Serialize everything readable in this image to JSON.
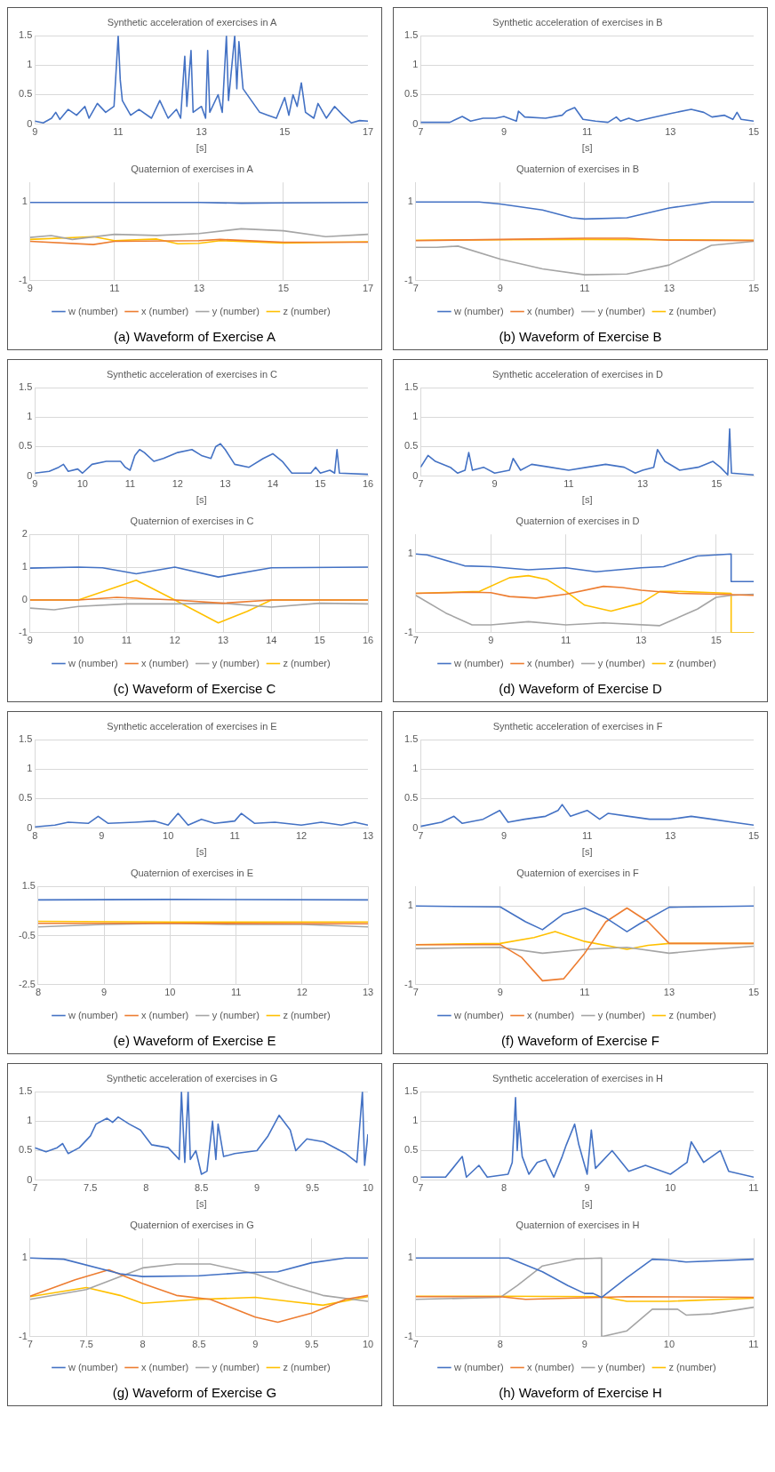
{
  "chart_data": [
    {
      "type": "line",
      "title": "Synthetic acceleration of exercises in A",
      "xlabel": "[s]",
      "color": "#4472c4",
      "marker": "none",
      "grid": "y",
      "xlim": [
        9,
        17
      ],
      "xticks": [
        9,
        11,
        13,
        15,
        17
      ],
      "ylim": [
        0,
        1.5
      ],
      "yticks": [
        0,
        0.5,
        1,
        1.5
      ],
      "x": [
        9,
        9.2,
        9.4,
        9.5,
        9.6,
        9.8,
        10,
        10.2,
        10.3,
        10.5,
        10.7,
        10.9,
        11,
        11.05,
        11.1,
        11.3,
        11.5,
        11.8,
        12,
        12.2,
        12.4,
        12.5,
        12.6,
        12.65,
        12.7,
        12.75,
        12.8,
        13,
        13.1,
        13.15,
        13.2,
        13.4,
        13.5,
        13.6,
        13.65,
        13.8,
        13.85,
        13.9,
        14,
        14.2,
        14.4,
        14.6,
        14.8,
        15,
        15.1,
        15.2,
        15.3,
        15.4,
        15.5,
        15.7,
        15.8,
        16,
        16.2,
        16.4,
        16.6,
        16.8,
        17
      ],
      "values": [
        0.05,
        0.02,
        0.1,
        0.2,
        0.08,
        0.25,
        0.15,
        0.3,
        0.1,
        0.35,
        0.2,
        0.3,
        1.5,
        0.75,
        0.4,
        0.15,
        0.25,
        0.1,
        0.4,
        0.1,
        0.25,
        0.1,
        1.15,
        0.3,
        0.8,
        1.25,
        0.2,
        0.3,
        0.1,
        1.25,
        0.2,
        0.5,
        0.2,
        1.5,
        0.4,
        1.5,
        0.6,
        1.4,
        0.6,
        0.4,
        0.2,
        0.15,
        0.1,
        0.45,
        0.15,
        0.5,
        0.3,
        0.7,
        0.2,
        0.1,
        0.35,
        0.1,
        0.3,
        0.15,
        0.02,
        0.06,
        0.05
      ]
    },
    {
      "type": "line",
      "title": "Quaternion of exercises in A",
      "marker": "none",
      "grid": true,
      "legend": "bottom",
      "xlim": [
        9,
        17
      ],
      "xticks": [
        9,
        11,
        13,
        15,
        17
      ],
      "ylim": [
        -1,
        1.5
      ],
      "yticks": [
        -1,
        1
      ],
      "annotations": [
        "(a) Waveform of Exercise A"
      ],
      "series": [
        {
          "name": "w (number)",
          "color": "#4472c4",
          "x": [
            9,
            11,
            13,
            14,
            15,
            17
          ],
          "values": [
            0.99,
            0.99,
            0.99,
            0.97,
            0.98,
            0.99
          ]
        },
        {
          "name": "x (number)",
          "color": "#ed7d31",
          "x": [
            9,
            10.5,
            11,
            13,
            13.5,
            15,
            17
          ],
          "values": [
            0,
            -0.08,
            0,
            0.02,
            0.05,
            -0.02,
            -0.02
          ]
        },
        {
          "name": "y (number)",
          "color": "#a5a5a5",
          "x": [
            9,
            9.5,
            10,
            11,
            12,
            13,
            14,
            15,
            16,
            17
          ],
          "values": [
            0.1,
            0.15,
            0.05,
            0.18,
            0.15,
            0.2,
            0.32,
            0.27,
            0.12,
            0.18
          ]
        },
        {
          "name": "z (number)",
          "color": "#ffc000",
          "x": [
            9,
            10.5,
            11,
            12,
            12.5,
            13,
            13.5,
            15,
            17
          ],
          "values": [
            0.05,
            0.12,
            0.02,
            0.06,
            -0.06,
            -0.05,
            0.02,
            -0.04,
            -0.01
          ]
        }
      ]
    },
    {
      "type": "line",
      "title": "Synthetic acceleration of exercises in B",
      "xlabel": "[s]",
      "color": "#4472c4",
      "marker": "none",
      "grid": "y",
      "xlim": [
        7,
        15
      ],
      "xticks": [
        7,
        9,
        11,
        13,
        15
      ],
      "ylim": [
        0,
        1.5
      ],
      "yticks": [
        0,
        0.5,
        1,
        1.5
      ],
      "x": [
        7,
        7.7,
        8,
        8.2,
        8.5,
        8.8,
        9,
        9.3,
        9.35,
        9.5,
        10,
        10.4,
        10.5,
        10.7,
        10.9,
        11.2,
        11.5,
        11.7,
        11.8,
        12,
        12.2,
        12.5,
        13,
        13.5,
        13.8,
        14,
        14.3,
        14.5,
        14.6,
        14.7,
        15
      ],
      "values": [
        0.03,
        0.03,
        0.13,
        0.05,
        0.1,
        0.1,
        0.13,
        0.05,
        0.22,
        0.12,
        0.1,
        0.15,
        0.22,
        0.28,
        0.08,
        0.05,
        0.03,
        0.12,
        0.05,
        0.1,
        0.05,
        0.1,
        0.18,
        0.25,
        0.2,
        0.12,
        0.15,
        0.08,
        0.2,
        0.08,
        0.05
      ]
    },
    {
      "type": "line",
      "title": "Quaternion of exercises in B",
      "marker": "none",
      "grid": true,
      "legend": "bottom",
      "xlim": [
        7,
        15
      ],
      "xticks": [
        7,
        9,
        11,
        13,
        15
      ],
      "ylim": [
        -1,
        1.5
      ],
      "yticks": [
        -1,
        1
      ],
      "annotations": [
        "(b) Waveform of Exercise B"
      ],
      "series": [
        {
          "name": "w (number)",
          "color": "#4472c4",
          "x": [
            7,
            8.5,
            9,
            10,
            10.7,
            11,
            12,
            13,
            14,
            15
          ],
          "values": [
            1,
            1,
            0.95,
            0.8,
            0.6,
            0.57,
            0.6,
            0.85,
            1,
            1
          ]
        },
        {
          "name": "x (number)",
          "color": "#ed7d31",
          "x": [
            7,
            9,
            11,
            12,
            13,
            15
          ],
          "values": [
            0.02,
            0.05,
            0.08,
            0.08,
            0.03,
            0.02
          ]
        },
        {
          "name": "y (number)",
          "color": "#a5a5a5",
          "x": [
            7,
            7.5,
            8,
            9,
            10,
            11,
            12,
            13,
            14,
            15
          ],
          "values": [
            -0.15,
            -0.15,
            -0.12,
            -0.45,
            -0.7,
            -0.85,
            -0.83,
            -0.6,
            -0.1,
            0
          ]
        },
        {
          "name": "z (number)",
          "color": "#ffc000",
          "x": [
            7,
            9,
            11,
            13,
            15
          ],
          "values": [
            0.03,
            0.04,
            0.05,
            0.04,
            0.03
          ]
        }
      ]
    },
    {
      "type": "line",
      "title": "Synthetic acceleration of exercises in C",
      "xlabel": "[s]",
      "color": "#4472c4",
      "marker": "none",
      "grid": "y",
      "xlim": [
        9,
        16
      ],
      "xticks": [
        9,
        10,
        11,
        12,
        13,
        14,
        15,
        16
      ],
      "ylim": [
        0,
        1.5
      ],
      "yticks": [
        0,
        0.5,
        1,
        1.5
      ],
      "x": [
        9,
        9.3,
        9.5,
        9.6,
        9.7,
        9.9,
        10,
        10.2,
        10.5,
        10.8,
        10.9,
        11,
        11.1,
        11.2,
        11.3,
        11.5,
        11.7,
        12,
        12.3,
        12.5,
        12.7,
        12.8,
        12.9,
        13,
        13.2,
        13.5,
        13.8,
        14,
        14.2,
        14.4,
        14.8,
        14.9,
        15,
        15.2,
        15.3,
        15.35,
        15.4,
        16
      ],
      "values": [
        0.05,
        0.08,
        0.15,
        0.2,
        0.08,
        0.12,
        0.05,
        0.2,
        0.25,
        0.25,
        0.15,
        0.1,
        0.35,
        0.45,
        0.4,
        0.25,
        0.3,
        0.4,
        0.45,
        0.35,
        0.3,
        0.5,
        0.55,
        0.45,
        0.2,
        0.15,
        0.3,
        0.38,
        0.25,
        0.05,
        0.05,
        0.15,
        0.05,
        0.1,
        0.05,
        0.45,
        0.05,
        0.03
      ]
    },
    {
      "type": "line",
      "title": "Quaternion of exercises in C",
      "marker": "none",
      "grid": true,
      "legend": "bottom",
      "xlim": [
        9,
        16
      ],
      "xticks": [
        9,
        10,
        11,
        12,
        13,
        14,
        15,
        16
      ],
      "ylim": [
        -1,
        2
      ],
      "yticks": [
        -1,
        0,
        1,
        2
      ],
      "annotations": [
        "(c) Waveform of Exercise C"
      ],
      "series": [
        {
          "name": "w (number)",
          "color": "#4472c4",
          "x": [
            9,
            10,
            10.5,
            11.2,
            12,
            12.9,
            14,
            16
          ],
          "values": [
            0.97,
            1,
            0.98,
            0.8,
            1,
            0.7,
            0.98,
            1
          ]
        },
        {
          "name": "x (number)",
          "color": "#ed7d31",
          "x": [
            9,
            10,
            10.8,
            12,
            13,
            14,
            16
          ],
          "values": [
            0,
            0,
            0.08,
            0,
            -0.1,
            0,
            0
          ]
        },
        {
          "name": "y (number)",
          "color": "#a5a5a5",
          "x": [
            9,
            9.5,
            10,
            11,
            12,
            13,
            14,
            15,
            16
          ],
          "values": [
            -0.25,
            -0.3,
            -0.2,
            -0.12,
            -0.12,
            -0.1,
            -0.22,
            -0.1,
            -0.12
          ]
        },
        {
          "name": "z (number)",
          "color": "#ffc000",
          "x": [
            9,
            10,
            11.2,
            12,
            12.9,
            13.5,
            14,
            16
          ],
          "values": [
            0,
            0,
            0.6,
            0,
            -0.7,
            -0.35,
            0,
            0
          ]
        }
      ]
    },
    {
      "type": "line",
      "title": "Synthetic acceleration of exercises in D",
      "xlabel": "[s]",
      "color": "#4472c4",
      "marker": "none",
      "grid": "y",
      "xlim": [
        7,
        16
      ],
      "xticks": [
        7,
        9,
        11,
        13,
        15
      ],
      "ylim": [
        0,
        1.5
      ],
      "yticks": [
        0,
        0.5,
        1,
        1.5
      ],
      "x": [
        7,
        7.2,
        7.4,
        7.8,
        8,
        8.2,
        8.3,
        8.4,
        8.7,
        9,
        9.4,
        9.5,
        9.7,
        10,
        10.5,
        11,
        11.5,
        12,
        12.5,
        12.8,
        13,
        13.3,
        13.4,
        13.6,
        14,
        14.5,
        14.9,
        15.1,
        15.3,
        15.35,
        15.4,
        16
      ],
      "values": [
        0.15,
        0.35,
        0.25,
        0.15,
        0.05,
        0.1,
        0.4,
        0.1,
        0.15,
        0.05,
        0.1,
        0.3,
        0.1,
        0.2,
        0.15,
        0.1,
        0.15,
        0.2,
        0.15,
        0.05,
        0.1,
        0.15,
        0.45,
        0.25,
        0.1,
        0.15,
        0.25,
        0.15,
        0.02,
        0.8,
        0.05,
        0.02
      ]
    },
    {
      "type": "line",
      "title": "Quaternion of exercises in D",
      "marker": "none",
      "grid": true,
      "legend": "bottom",
      "xlim": [
        7,
        16
      ],
      "xticks": [
        7,
        9,
        11,
        13,
        15
      ],
      "ylim": [
        -1,
        1.5
      ],
      "yticks": [
        -1,
        1
      ],
      "annotations": [
        "(d) Waveform of Exercise D"
      ],
      "series": [
        {
          "name": "w (number)",
          "color": "#4472c4",
          "x": [
            7,
            7.3,
            8.3,
            9,
            10,
            11,
            11.8,
            13,
            13.6,
            14.5,
            15.4,
            15.4,
            16
          ],
          "values": [
            1,
            0.98,
            0.7,
            0.68,
            0.6,
            0.65,
            0.55,
            0.65,
            0.68,
            0.95,
            1,
            0.3,
            0.3
          ]
        },
        {
          "name": "x (number)",
          "color": "#ed7d31",
          "x": [
            7,
            8.5,
            9,
            9.5,
            10.2,
            11,
            12,
            12.5,
            13,
            14,
            15,
            16
          ],
          "values": [
            0,
            0.03,
            0.02,
            -0.08,
            -0.12,
            -0.02,
            0.18,
            0.15,
            0.08,
            0,
            -0.02,
            -0.05
          ]
        },
        {
          "name": "y (number)",
          "color": "#a5a5a5",
          "x": [
            7,
            7.8,
            8.5,
            9,
            10,
            11,
            12,
            13.5,
            14.5,
            15,
            15.4,
            16
          ],
          "values": [
            -0.05,
            -0.5,
            -0.8,
            -0.8,
            -0.72,
            -0.8,
            -0.75,
            -0.82,
            -0.4,
            -0.1,
            -0.05,
            -0.02
          ]
        },
        {
          "name": "z (number)",
          "color": "#ffc000",
          "x": [
            7,
            8.7,
            9.5,
            10,
            10.5,
            11,
            11.5,
            12.2,
            13,
            13.5,
            14,
            15.4,
            15.4,
            16
          ],
          "values": [
            0,
            0.05,
            0.4,
            0.45,
            0.35,
            0.05,
            -0.3,
            -0.45,
            -0.25,
            0.05,
            0.05,
            0,
            -1,
            -1
          ]
        }
      ]
    },
    {
      "type": "line",
      "title": "Synthetic acceleration of exercises in E",
      "xlabel": "[s]",
      "color": "#4472c4",
      "marker": "none",
      "grid": "y",
      "xlim": [
        8,
        13
      ],
      "xticks": [
        8,
        9,
        10,
        11,
        12,
        13
      ],
      "ylim": [
        0,
        1.5
      ],
      "yticks": [
        0,
        0.5,
        1,
        1.5
      ],
      "x": [
        8,
        8.3,
        8.5,
        8.8,
        8.95,
        9.1,
        9.5,
        9.8,
        10,
        10.15,
        10.3,
        10.5,
        10.7,
        11,
        11.1,
        11.3,
        11.6,
        12,
        12.3,
        12.6,
        12.8,
        13
      ],
      "values": [
        0.02,
        0.05,
        0.1,
        0.08,
        0.2,
        0.08,
        0.1,
        0.12,
        0.05,
        0.25,
        0.05,
        0.15,
        0.08,
        0.12,
        0.25,
        0.08,
        0.1,
        0.05,
        0.1,
        0.05,
        0.1,
        0.05
      ]
    },
    {
      "type": "line",
      "title": "Quaternion of exercises in E",
      "marker": "none",
      "grid": true,
      "legend": "bottom",
      "xlim": [
        8,
        13
      ],
      "xticks": [
        8,
        9,
        10,
        11,
        12,
        13
      ],
      "ylim": [
        -2.5,
        1.5
      ],
      "yticks": [
        -2.5,
        -0.5,
        1.5
      ],
      "annotations": [
        "(e) Waveform of Exercise E"
      ],
      "series": [
        {
          "name": "w (number)",
          "color": "#4472c4",
          "x": [
            8,
            10,
            13
          ],
          "values": [
            0.95,
            0.97,
            0.95
          ]
        },
        {
          "name": "x (number)",
          "color": "#ed7d31",
          "x": [
            8,
            10,
            13
          ],
          "values": [
            0,
            0,
            -0.02
          ]
        },
        {
          "name": "y (number)",
          "color": "#a5a5a5",
          "x": [
            8,
            9,
            10,
            11,
            12,
            13
          ],
          "values": [
            -0.15,
            -0.05,
            0,
            -0.05,
            -0.05,
            -0.15
          ]
        },
        {
          "name": "z (number)",
          "color": "#ffc000",
          "x": [
            8,
            10,
            13
          ],
          "values": [
            0.08,
            0.05,
            0.05
          ]
        }
      ]
    },
    {
      "type": "line",
      "title": "Synthetic acceleration of exercises in F",
      "xlabel": "[s]",
      "color": "#4472c4",
      "marker": "none",
      "grid": "y",
      "xlim": [
        7,
        15
      ],
      "xticks": [
        7,
        9,
        11,
        13,
        15
      ],
      "ylim": [
        0,
        1.5
      ],
      "yticks": [
        0,
        0.5,
        1,
        1.5
      ],
      "x": [
        7,
        7.5,
        7.8,
        8,
        8.5,
        8.9,
        9.1,
        9.5,
        10,
        10.3,
        10.4,
        10.6,
        11,
        11.3,
        11.5,
        12,
        12.5,
        13,
        13.5,
        14,
        14.5,
        15
      ],
      "values": [
        0.03,
        0.1,
        0.2,
        0.08,
        0.15,
        0.3,
        0.1,
        0.15,
        0.2,
        0.3,
        0.4,
        0.2,
        0.3,
        0.15,
        0.25,
        0.2,
        0.15,
        0.15,
        0.2,
        0.15,
        0.1,
        0.05
      ]
    },
    {
      "type": "line",
      "title": "Quaternion of exercises in F",
      "marker": "none",
      "grid": true,
      "legend": "bottom",
      "xlim": [
        7,
        15
      ],
      "xticks": [
        7,
        9,
        11,
        13,
        15
      ],
      "ylim": [
        -1,
        1.5
      ],
      "yticks": [
        -1,
        1
      ],
      "annotations": [
        "(f) Waveform of Exercise F"
      ],
      "series": [
        {
          "name": "w (number)",
          "color": "#4472c4",
          "x": [
            7,
            9,
            9.6,
            10,
            10.5,
            11,
            11.5,
            12,
            12.3,
            13,
            15
          ],
          "values": [
            1,
            0.98,
            0.6,
            0.4,
            0.8,
            0.95,
            0.7,
            0.35,
            0.55,
            0.97,
            1
          ]
        },
        {
          "name": "x (number)",
          "color": "#ed7d31",
          "x": [
            7,
            9,
            9.5,
            10,
            10.5,
            11,
            11.5,
            12,
            12.5,
            13,
            15
          ],
          "values": [
            0.02,
            0.02,
            -0.3,
            -0.9,
            -0.85,
            -0.2,
            0.6,
            0.95,
            0.6,
            0.05,
            0.05
          ]
        },
        {
          "name": "y (number)",
          "color": "#a5a5a5",
          "x": [
            7,
            9,
            10,
            11,
            12,
            13,
            14,
            15
          ],
          "values": [
            -0.08,
            -0.05,
            -0.2,
            -0.1,
            -0.05,
            -0.2,
            -0.1,
            -0.02
          ]
        },
        {
          "name": "z (number)",
          "color": "#ffc000",
          "x": [
            7,
            9,
            9.8,
            10.3,
            11,
            12,
            12.5,
            13,
            15
          ],
          "values": [
            0.02,
            0.05,
            0.2,
            0.35,
            0.1,
            -0.1,
            0,
            0.05,
            0.05
          ]
        }
      ]
    },
    {
      "type": "line",
      "title": "Synthetic acceleration of exercises in G",
      "xlabel": "[s]",
      "color": "#4472c4",
      "marker": "none",
      "grid": "y",
      "xlim": [
        7,
        10
      ],
      "xticks": [
        7,
        7.5,
        8,
        8.5,
        9,
        9.5,
        10
      ],
      "ylim": [
        0,
        1.5
      ],
      "yticks": [
        0,
        0.5,
        1,
        1.5
      ],
      "x": [
        7,
        7.1,
        7.2,
        7.25,
        7.3,
        7.4,
        7.5,
        7.55,
        7.65,
        7.7,
        7.75,
        7.85,
        7.95,
        8.05,
        8.2,
        8.3,
        8.32,
        8.35,
        8.38,
        8.4,
        8.45,
        8.5,
        8.55,
        8.6,
        8.63,
        8.65,
        8.7,
        8.8,
        9,
        9.1,
        9.2,
        9.3,
        9.35,
        9.45,
        9.6,
        9.8,
        9.9,
        9.95,
        9.97,
        10
      ],
      "values": [
        0.55,
        0.48,
        0.55,
        0.62,
        0.45,
        0.55,
        0.75,
        0.95,
        1.05,
        0.98,
        1.07,
        0.95,
        0.85,
        0.6,
        0.55,
        0.35,
        1.5,
        0.3,
        1.5,
        0.35,
        0.5,
        0.1,
        0.15,
        1,
        0.35,
        0.95,
        0.4,
        0.45,
        0.5,
        0.75,
        1.1,
        0.85,
        0.5,
        0.7,
        0.65,
        0.45,
        0.3,
        1.5,
        0.25,
        0.78
      ]
    },
    {
      "type": "line",
      "title": "Quaternion of exercises in G",
      "marker": "none",
      "grid": true,
      "legend": "bottom",
      "xlim": [
        7,
        10
      ],
      "xticks": [
        7,
        7.5,
        8,
        8.5,
        9,
        9.5,
        10
      ],
      "ylim": [
        -1,
        1.5
      ],
      "yticks": [
        -1,
        1
      ],
      "annotations": [
        "(g) Waveform of Exercise G"
      ],
      "series": [
        {
          "name": "w (number)",
          "color": "#4472c4",
          "x": [
            7,
            7.3,
            7.8,
            8,
            8.5,
            8.9,
            9.2,
            9.5,
            9.8,
            10
          ],
          "values": [
            1,
            0.97,
            0.6,
            0.53,
            0.55,
            0.63,
            0.65,
            0.88,
            1,
            1
          ]
        },
        {
          "name": "x (number)",
          "color": "#ed7d31",
          "x": [
            7,
            7.4,
            7.7,
            8,
            8.3,
            8.6,
            9,
            9.2,
            9.5,
            9.8,
            10
          ],
          "values": [
            0.03,
            0.45,
            0.7,
            0.35,
            0.05,
            -0.05,
            -0.5,
            -0.63,
            -0.4,
            -0.05,
            0.05
          ]
        },
        {
          "name": "y (number)",
          "color": "#a5a5a5",
          "x": [
            7,
            7.5,
            8,
            8.3,
            8.6,
            9,
            9.3,
            9.6,
            10
          ],
          "values": [
            -0.05,
            0.2,
            0.75,
            0.85,
            0.85,
            0.6,
            0.3,
            0.05,
            -0.1
          ]
        },
        {
          "name": "z (number)",
          "color": "#ffc000",
          "x": [
            7,
            7.5,
            7.8,
            8,
            8.5,
            9,
            9.3,
            9.6,
            10
          ],
          "values": [
            0.02,
            0.25,
            0.05,
            -0.15,
            -0.05,
            0,
            -0.1,
            -0.2,
            0.02
          ]
        }
      ]
    },
    {
      "type": "line",
      "title": "Synthetic acceleration of exercises in H",
      "xlabel": "[s]",
      "color": "#4472c4",
      "marker": "none",
      "grid": "y",
      "xlim": [
        7,
        11
      ],
      "xticks": [
        7,
        8,
        9,
        10,
        11
      ],
      "ylim": [
        0,
        1.5
      ],
      "yticks": [
        0,
        0.5,
        1,
        1.5
      ],
      "x": [
        7,
        7.3,
        7.5,
        7.55,
        7.7,
        7.8,
        8.05,
        8.1,
        8.14,
        8.16,
        8.18,
        8.22,
        8.3,
        8.4,
        8.5,
        8.6,
        8.7,
        8.75,
        8.85,
        8.9,
        9,
        9.05,
        9.1,
        9.3,
        9.5,
        9.7,
        10,
        10.2,
        10.25,
        10.4,
        10.6,
        10.7,
        11
      ],
      "values": [
        0.05,
        0.05,
        0.4,
        0.05,
        0.25,
        0.05,
        0.1,
        0.3,
        1.4,
        0.5,
        1,
        0.4,
        0.1,
        0.3,
        0.35,
        0.05,
        0.4,
        0.6,
        0.95,
        0.6,
        0.1,
        0.85,
        0.2,
        0.5,
        0.15,
        0.25,
        0.1,
        0.3,
        0.65,
        0.3,
        0.5,
        0.15,
        0.05
      ]
    },
    {
      "type": "line",
      "title": "Quaternion of exercises in H",
      "marker": "none",
      "grid": true,
      "legend": "bottom",
      "xlim": [
        7,
        11
      ],
      "xticks": [
        7,
        8,
        9,
        10,
        11
      ],
      "ylim": [
        -1,
        1.5
      ],
      "yticks": [
        -1,
        1
      ],
      "annotations": [
        "(h) Waveform of Exercise H"
      ],
      "series": [
        {
          "name": "w (number)",
          "color": "#4472c4",
          "x": [
            7,
            8.1,
            8.5,
            8.8,
            9,
            9.1,
            9.2,
            9.5,
            9.8,
            10,
            10.2,
            11
          ],
          "values": [
            1,
            1,
            0.65,
            0.3,
            0.1,
            0.1,
            0,
            0.5,
            0.97,
            0.95,
            0.9,
            0.97
          ]
        },
        {
          "name": "x (number)",
          "color": "#ed7d31",
          "x": [
            7,
            8,
            8.3,
            9.2,
            9.5,
            11
          ],
          "values": [
            0.02,
            0.02,
            -0.05,
            0,
            0.02,
            0
          ]
        },
        {
          "name": "y (number)",
          "color": "#a5a5a5",
          "x": [
            7,
            8,
            8.2,
            8.5,
            8.9,
            9.2,
            9.2,
            9.5,
            9.8,
            10.1,
            10.2,
            10.5,
            11
          ],
          "values": [
            -0.05,
            0,
            0.3,
            0.8,
            0.98,
            1,
            -1,
            -0.85,
            -0.3,
            -0.3,
            -0.45,
            -0.42,
            -0.25
          ]
        },
        {
          "name": "z (number)",
          "color": "#ffc000",
          "x": [
            7,
            8,
            9.2,
            9.5,
            10,
            11
          ],
          "values": [
            0.03,
            0.03,
            0.02,
            -0.1,
            -0.1,
            -0.02
          ]
        }
      ]
    }
  ]
}
